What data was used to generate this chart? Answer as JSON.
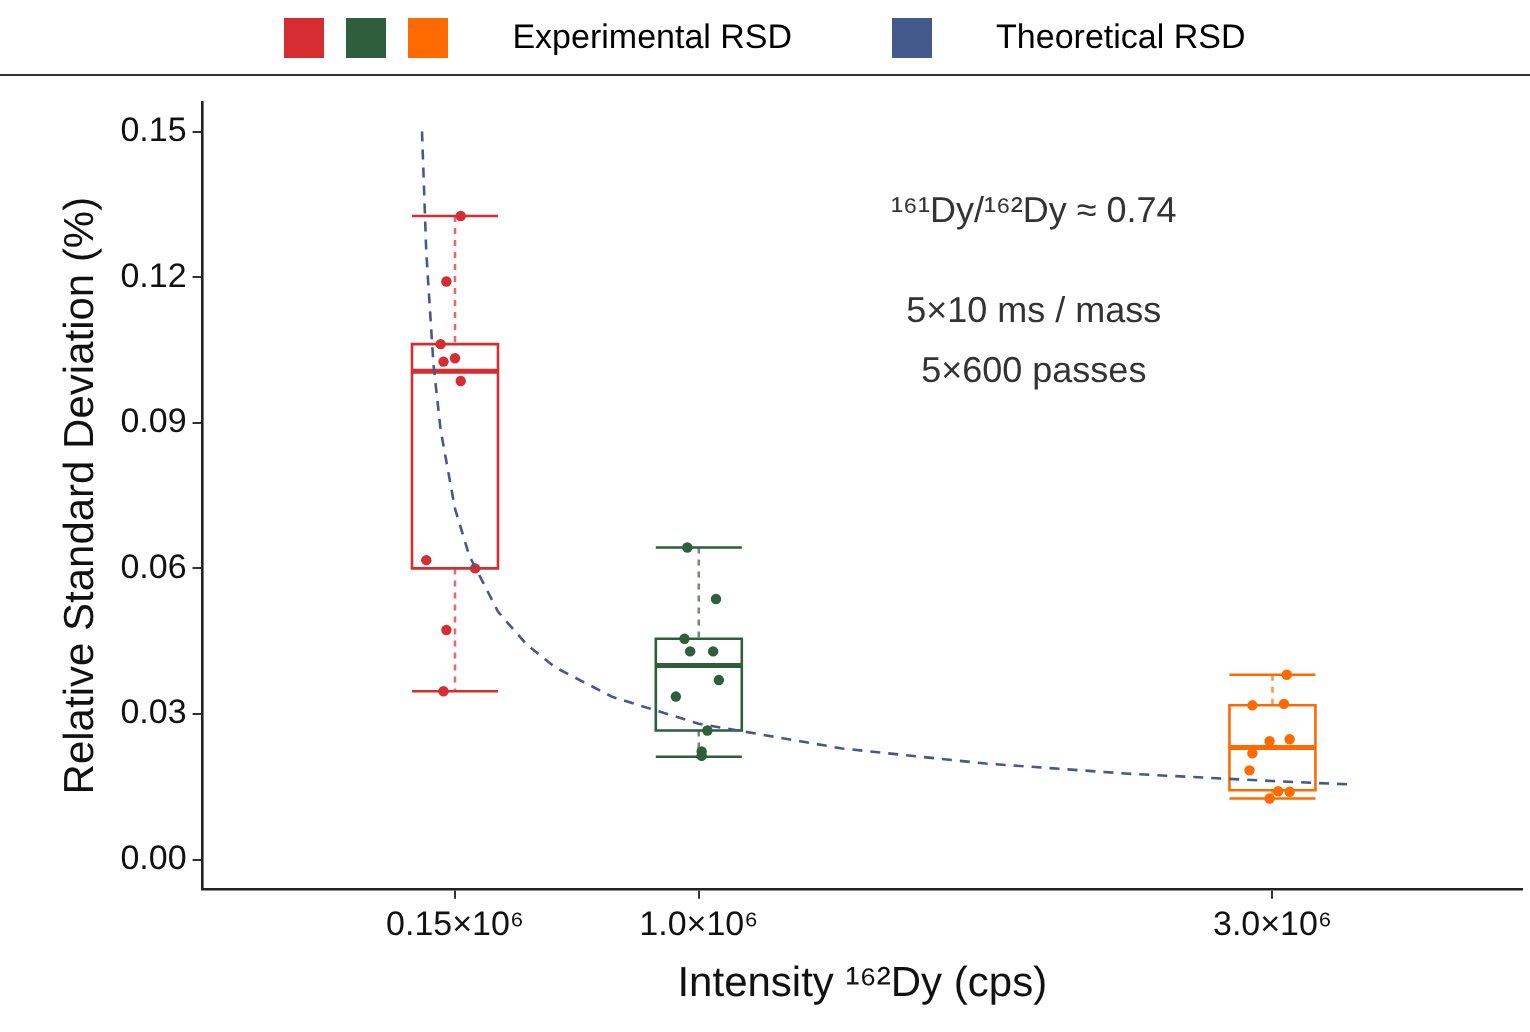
{
  "chart_data": {
    "type": "box",
    "xlabel": "Intensity ¹⁶²Dy (cps)",
    "ylabel": "Relative Standard Deviation (%)",
    "annotations": [
      "¹⁶¹Dy/¹⁶²Dy ≈ 0.74",
      "5×10 ms / mass",
      "5×600 passes"
    ],
    "xlim": [
      -730000,
      3870000
    ],
    "xticks": [
      {
        "value": 150000,
        "label": "0.15×10⁶"
      },
      {
        "value": 1000000,
        "label": "1.0×10⁶"
      },
      {
        "value": 3000000,
        "label": "3.0×10⁶"
      }
    ],
    "ylim": [
      -0.006,
      0.156
    ],
    "yticks": [
      {
        "value": 0,
        "label": "0.00"
      },
      {
        "value": 0.03,
        "label": "0.03"
      },
      {
        "value": 0.06,
        "label": "0.06"
      },
      {
        "value": 0.09,
        "label": "0.09"
      },
      {
        "value": 0.12,
        "label": "0.12"
      },
      {
        "value": 0.15,
        "label": "0.15"
      }
    ],
    "grid": false,
    "legend": "top",
    "marker": "circle",
    "series": [
      {
        "name": "Experimental RSD",
        "colors": [
          "#d62d32",
          "#2e5e3c",
          "#ff6a00"
        ],
        "x": [
          150000,
          1000000,
          3000000
        ],
        "boxes": [
          {
            "low": 0.0347,
            "q1": 0.06,
            "median": 0.1006,
            "q3": 0.1062,
            "high": 0.1326
          },
          {
            "low": 0.0212,
            "q1": 0.0266,
            "median": 0.04,
            "q3": 0.0455,
            "high": 0.0643
          },
          {
            "low": 0.0126,
            "q1": 0.0143,
            "median": 0.0231,
            "q3": 0.0318,
            "high": 0.0381
          }
        ]
      },
      {
        "type": "scatter",
        "color": "#d62d32",
        "x": [
          170000,
          120000,
          100000,
          150000,
          110000,
          170000,
          50000,
          220000,
          120000,
          110000
        ],
        "values": [
          0.1326,
          0.1191,
          0.1062,
          0.1033,
          0.1026,
          0.0986,
          0.0617,
          0.06,
          0.0473,
          0.0347
        ]
      },
      {
        "type": "scatter",
        "color": "#2e5e3c",
        "x": [
          960000,
          1060000,
          950000,
          970000,
          1050000,
          1070000,
          920000,
          1030000,
          1010000,
          1010000
        ],
        "values": [
          0.0643,
          0.0537,
          0.0455,
          0.0429,
          0.0429,
          0.037,
          0.0336,
          0.0266,
          0.0223,
          0.0214
        ]
      },
      {
        "type": "scatter",
        "color": "#ff6a00",
        "x": [
          3050000,
          2930000,
          3040000,
          2990000,
          3060000,
          2930000,
          2920000,
          3020000,
          3060000,
          2990000
        ],
        "values": [
          0.0381,
          0.0318,
          0.0321,
          0.0244,
          0.0248,
          0.0219,
          0.0184,
          0.0141,
          0.014,
          0.0126
        ]
      },
      {
        "type": "line",
        "name": "Theoretical RSD",
        "color": "#44598c",
        "line_style": "dashed",
        "marker": "none",
        "x": [
          35000,
          50000,
          75000,
          100000,
          150000,
          200000,
          300000,
          400000,
          500000,
          700000,
          1000000,
          1500000,
          2000000,
          2500000,
          3000000,
          3270000
        ],
        "values": [
          0.15,
          0.125,
          0.102,
          0.0885,
          0.0723,
          0.0626,
          0.0511,
          0.0443,
          0.0396,
          0.0335,
          0.028,
          0.0229,
          0.0198,
          0.0177,
          0.0162,
          0.0155
        ]
      }
    ]
  }
}
